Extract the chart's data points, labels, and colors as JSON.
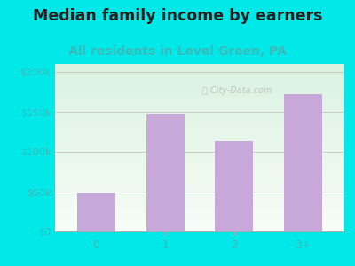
{
  "title": "Median family income by earners",
  "subtitle": "All residents in Level Green, PA",
  "categories": [
    "0",
    "1",
    "2",
    "3+"
  ],
  "values": [
    48000,
    147000,
    113000,
    172000
  ],
  "bar_color": "#c8a8d8",
  "title_color": "#222222",
  "subtitle_color": "#3bbaba",
  "background_color": "#00e8e8",
  "plot_bg_topleft": "#d4edda",
  "plot_bg_topright": "#e8e8f0",
  "plot_bg_bottom": "#f5f8f0",
  "yticks": [
    0,
    50000,
    100000,
    150000,
    200000
  ],
  "ytick_labels": [
    "$0",
    "$50k",
    "$100k",
    "$150k",
    "$200k"
  ],
  "ylim": [
    0,
    210000
  ],
  "grid_color": "#c8c8c8",
  "title_fontsize": 12.5,
  "subtitle_fontsize": 10,
  "tick_color": "#3bbaba",
  "axis_label_color": "#3bbaba"
}
